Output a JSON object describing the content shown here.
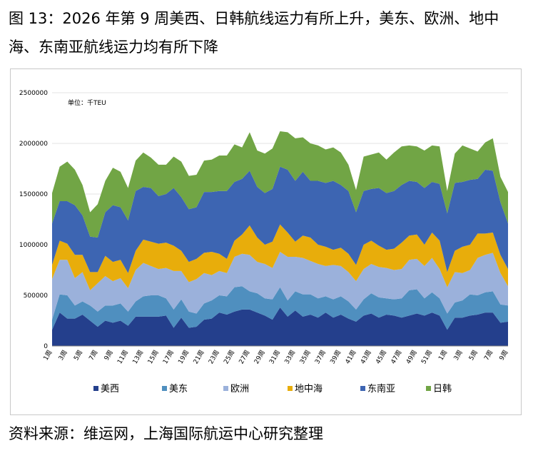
{
  "figure": {
    "title": "图 13：2026 年第 9 周美西、日韩航线运力有所上升，美东、欧洲、地中海、东南亚航线运力均有所下降",
    "source": "资料来源：维运网，上海国际航运中心研究整理"
  },
  "chart_data": {
    "type": "area",
    "stacked": true,
    "unit_label": "单位：千TEU",
    "ylim": [
      0,
      2500000
    ],
    "yticks": [
      0,
      500000,
      1000000,
      1500000,
      2000000,
      2500000
    ],
    "ytick_labels": [
      "0",
      "500000",
      "1000000",
      "1500000",
      "2000000",
      "2500000"
    ],
    "grid": true,
    "legend_position": "bottom",
    "x": [
      "1周",
      "2周",
      "3周",
      "4周",
      "5周",
      "6周",
      "7周",
      "8周",
      "9周",
      "10周",
      "11周",
      "12周",
      "13周",
      "14周",
      "15周",
      "16周",
      "17周",
      "18周",
      "19周",
      "20周",
      "21周",
      "22周",
      "23周",
      "24周",
      "25周",
      "26周",
      "27周",
      "28周",
      "29周",
      "30周",
      "31周",
      "32周",
      "33周",
      "34周",
      "35周",
      "36周",
      "37周",
      "38周",
      "39周",
      "40周",
      "41周",
      "42周",
      "43周",
      "44周",
      "45周",
      "46周",
      "47周",
      "48周",
      "49周",
      "50周",
      "51周",
      "52周",
      "1周",
      "2周",
      "3周",
      "4周",
      "5周",
      "6周",
      "7周",
      "8周",
      "9周"
    ],
    "xtick_labels": [
      "1周",
      "3周",
      "5周",
      "7周",
      "9周",
      "11周",
      "13周",
      "15周",
      "17周",
      "19周",
      "21周",
      "23周",
      "25周",
      "27周",
      "29周",
      "31周",
      "33周",
      "35周",
      "37周",
      "39周",
      "41周",
      "43周",
      "45周",
      "47周",
      "49周",
      "51周",
      "1周",
      "3周",
      "5周",
      "7周",
      "9周"
    ],
    "series": [
      {
        "name": "美西",
        "color": "#243f8c",
        "values": [
          160000,
          330000,
          270000,
          270000,
          310000,
          250000,
          190000,
          250000,
          230000,
          250000,
          200000,
          290000,
          290000,
          290000,
          290000,
          300000,
          180000,
          280000,
          180000,
          190000,
          260000,
          270000,
          330000,
          310000,
          340000,
          360000,
          360000,
          330000,
          300000,
          260000,
          380000,
          290000,
          350000,
          290000,
          310000,
          280000,
          330000,
          280000,
          310000,
          270000,
          240000,
          300000,
          320000,
          280000,
          310000,
          300000,
          280000,
          300000,
          320000,
          300000,
          330000,
          300000,
          160000,
          280000,
          280000,
          300000,
          310000,
          330000,
          330000,
          230000,
          240000
        ]
      },
      {
        "name": "美东",
        "color": "#4f8fbf",
        "values": [
          100000,
          180000,
          230000,
          130000,
          130000,
          150000,
          150000,
          150000,
          170000,
          170000,
          140000,
          150000,
          200000,
          210000,
          210000,
          170000,
          180000,
          180000,
          160000,
          130000,
          160000,
          180000,
          170000,
          180000,
          240000,
          230000,
          180000,
          190000,
          170000,
          200000,
          200000,
          160000,
          190000,
          220000,
          200000,
          190000,
          160000,
          180000,
          180000,
          170000,
          120000,
          160000,
          200000,
          200000,
          160000,
          160000,
          190000,
          250000,
          240000,
          170000,
          200000,
          170000,
          160000,
          150000,
          170000,
          210000,
          190000,
          200000,
          210000,
          180000,
          160000
        ]
      },
      {
        "name": "欧洲",
        "color": "#9bb1db",
        "values": [
          400000,
          340000,
          350000,
          270000,
          290000,
          150000,
          280000,
          290000,
          240000,
          250000,
          230000,
          310000,
          330000,
          290000,
          260000,
          300000,
          380000,
          280000,
          290000,
          340000,
          300000,
          250000,
          240000,
          230000,
          300000,
          320000,
          360000,
          310000,
          340000,
          310000,
          350000,
          430000,
          340000,
          360000,
          330000,
          340000,
          300000,
          340000,
          300000,
          290000,
          280000,
          300000,
          290000,
          300000,
          300000,
          290000,
          290000,
          300000,
          300000,
          320000,
          340000,
          290000,
          260000,
          300000,
          270000,
          240000,
          370000,
          370000,
          380000,
          310000,
          190000
        ]
      },
      {
        "name": "地中海",
        "color": "#e8ad0b",
        "values": [
          140000,
          190000,
          160000,
          230000,
          170000,
          180000,
          110000,
          200000,
          190000,
          180000,
          150000,
          190000,
          230000,
          240000,
          250000,
          250000,
          250000,
          200000,
          200000,
          200000,
          200000,
          230000,
          170000,
          140000,
          160000,
          190000,
          290000,
          240000,
          190000,
          260000,
          270000,
          240000,
          150000,
          220000,
          230000,
          190000,
          190000,
          150000,
          180000,
          180000,
          160000,
          240000,
          230000,
          210000,
          180000,
          210000,
          260000,
          240000,
          240000,
          210000,
          250000,
          280000,
          150000,
          210000,
          260000,
          250000,
          240000,
          210000,
          200000,
          180000,
          170000
        ]
      },
      {
        "name": "东南亚",
        "color": "#3d65b2",
        "values": [
          410000,
          390000,
          420000,
          490000,
          390000,
          350000,
          340000,
          430000,
          560000,
          520000,
          520000,
          590000,
          520000,
          530000,
          470000,
          480000,
          570000,
          530000,
          520000,
          510000,
          600000,
          590000,
          620000,
          670000,
          580000,
          550000,
          540000,
          500000,
          510000,
          520000,
          570000,
          620000,
          600000,
          630000,
          560000,
          630000,
          630000,
          680000,
          620000,
          620000,
          520000,
          530000,
          510000,
          570000,
          560000,
          570000,
          570000,
          540000,
          520000,
          560000,
          500000,
          560000,
          580000,
          670000,
          640000,
          640000,
          540000,
          630000,
          610000,
          520000,
          450000
        ]
      },
      {
        "name": "日韩",
        "color": "#71a545",
        "values": [
          300000,
          340000,
          390000,
          350000,
          300000,
          240000,
          330000,
          310000,
          370000,
          350000,
          320000,
          300000,
          340000,
          300000,
          310000,
          290000,
          310000,
          350000,
          330000,
          320000,
          310000,
          320000,
          350000,
          350000,
          370000,
          310000,
          380000,
          360000,
          390000,
          400000,
          350000,
          370000,
          420000,
          340000,
          370000,
          350000,
          330000,
          330000,
          320000,
          260000,
          220000,
          340000,
          340000,
          350000,
          330000,
          380000,
          380000,
          350000,
          350000,
          370000,
          360000,
          370000,
          220000,
          290000,
          360000,
          310000,
          270000,
          270000,
          320000,
          250000,
          310000
        ]
      }
    ]
  }
}
